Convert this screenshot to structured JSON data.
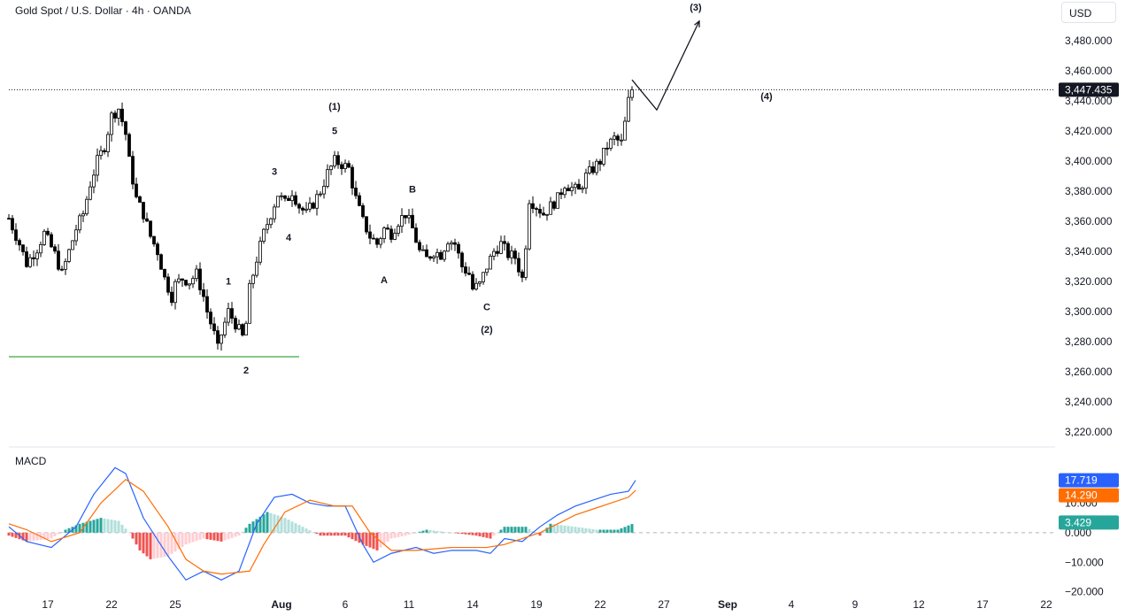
{
  "header": {
    "symbol_title": "Gold Spot / U.S. Dollar · 4h · OANDA",
    "currency": "USD"
  },
  "colors": {
    "up": "#26a69a",
    "down": "#ef5350",
    "candle": "#000000",
    "macd_line": "#2962ff",
    "signal_line": "#ff6d00",
    "hist_up_strong": "#26a69a",
    "hist_up_weak": "#b2dfdb",
    "hist_down_strong": "#ef5350",
    "hist_down_weak": "#ffcdd2",
    "support_line": "#4caf50"
  },
  "chart_data": [
    {
      "type": "candlestick",
      "title": "Gold Spot / U.S. Dollar · 4h · OANDA",
      "x_tick_labels": [
        "17",
        "22",
        "25",
        "Aug",
        "6",
        "11",
        "14",
        "19",
        "22",
        "27",
        "Sep",
        "4",
        "9",
        "12",
        "17",
        "22"
      ],
      "y_tick_labels": [
        "3,480.000",
        "3,460.000",
        "3,440.000",
        "3,420.000",
        "3,400.000",
        "3,380.000",
        "3,360.000",
        "3,340.000",
        "3,320.000",
        "3,300.000",
        "3,280.000",
        "3,260.000",
        "3,240.000",
        "3,220.000"
      ],
      "ylim": [
        3213,
        3500
      ],
      "last_price": 3447.435,
      "last_price_label": "3,447.435",
      "support_level": 3270,
      "close_path": [
        {
          "x": 0,
          "y": 3362
        },
        {
          "x": 3,
          "y": 3345
        },
        {
          "x": 5,
          "y": 3332
        },
        {
          "x": 8,
          "y": 3342
        },
        {
          "x": 10,
          "y": 3352
        },
        {
          "x": 13,
          "y": 3338
        },
        {
          "x": 15,
          "y": 3325
        },
        {
          "x": 17,
          "y": 3340
        },
        {
          "x": 19,
          "y": 3355
        },
        {
          "x": 21,
          "y": 3365
        },
        {
          "x": 23,
          "y": 3385
        },
        {
          "x": 25,
          "y": 3400
        },
        {
          "x": 27,
          "y": 3410
        },
        {
          "x": 29,
          "y": 3430
        },
        {
          "x": 31,
          "y": 3435
        },
        {
          "x": 33,
          "y": 3418
        },
        {
          "x": 34,
          "y": 3400
        },
        {
          "x": 36,
          "y": 3375
        },
        {
          "x": 38,
          "y": 3365
        },
        {
          "x": 40,
          "y": 3350
        },
        {
          "x": 42,
          "y": 3340
        },
        {
          "x": 44,
          "y": 3322
        },
        {
          "x": 46,
          "y": 3310
        },
        {
          "x": 47,
          "y": 3318
        },
        {
          "x": 49,
          "y": 3322
        },
        {
          "x": 51,
          "y": 3320
        },
        {
          "x": 53,
          "y": 3325
        },
        {
          "x": 55,
          "y": 3310
        },
        {
          "x": 56,
          "y": 3300
        },
        {
          "x": 58,
          "y": 3285
        },
        {
          "x": 59,
          "y": 3275
        },
        {
          "x": 60,
          "y": 3285
        },
        {
          "x": 62,
          "y": 3300
        },
        {
          "x": 64,
          "y": 3292
        },
        {
          "x": 66,
          "y": 3283
        },
        {
          "x": 67,
          "y": 3292
        },
        {
          "x": 68,
          "y": 3315
        },
        {
          "x": 70,
          "y": 3335
        },
        {
          "x": 72,
          "y": 3352
        },
        {
          "x": 74,
          "y": 3365
        },
        {
          "x": 76,
          "y": 3378
        },
        {
          "x": 78,
          "y": 3372
        },
        {
          "x": 80,
          "y": 3380
        },
        {
          "x": 82,
          "y": 3370
        },
        {
          "x": 84,
          "y": 3365
        },
        {
          "x": 86,
          "y": 3372
        },
        {
          "x": 88,
          "y": 3380
        },
        {
          "x": 90,
          "y": 3392
        },
        {
          "x": 92,
          "y": 3400
        },
        {
          "x": 94,
          "y": 3398
        },
        {
          "x": 96,
          "y": 3395
        },
        {
          "x": 98,
          "y": 3375
        },
        {
          "x": 100,
          "y": 3360
        },
        {
          "x": 102,
          "y": 3350
        },
        {
          "x": 104,
          "y": 3345
        },
        {
          "x": 106,
          "y": 3355
        },
        {
          "x": 108,
          "y": 3352
        },
        {
          "x": 110,
          "y": 3360
        },
        {
          "x": 112,
          "y": 3365
        },
        {
          "x": 114,
          "y": 3355
        },
        {
          "x": 116,
          "y": 3340
        },
        {
          "x": 118,
          "y": 3335
        },
        {
          "x": 120,
          "y": 3340
        },
        {
          "x": 122,
          "y": 3338
        },
        {
          "x": 124,
          "y": 3348
        },
        {
          "x": 126,
          "y": 3345
        },
        {
          "x": 128,
          "y": 3330
        },
        {
          "x": 130,
          "y": 3325
        },
        {
          "x": 131,
          "y": 3315
        },
        {
          "x": 133,
          "y": 3318
        },
        {
          "x": 135,
          "y": 3330
        },
        {
          "x": 137,
          "y": 3340
        },
        {
          "x": 139,
          "y": 3345
        },
        {
          "x": 141,
          "y": 3338
        },
        {
          "x": 143,
          "y": 3336
        },
        {
          "x": 145,
          "y": 3322
        },
        {
          "x": 146,
          "y": 3345
        },
        {
          "x": 147,
          "y": 3375
        },
        {
          "x": 149,
          "y": 3370
        },
        {
          "x": 151,
          "y": 3365
        },
        {
          "x": 153,
          "y": 3370
        },
        {
          "x": 155,
          "y": 3375
        },
        {
          "x": 157,
          "y": 3385
        },
        {
          "x": 159,
          "y": 3382
        },
        {
          "x": 161,
          "y": 3380
        },
        {
          "x": 163,
          "y": 3390
        },
        {
          "x": 165,
          "y": 3395
        },
        {
          "x": 167,
          "y": 3400
        },
        {
          "x": 169,
          "y": 3410
        },
        {
          "x": 171,
          "y": 3415
        },
        {
          "x": 173,
          "y": 3412
        },
        {
          "x": 174,
          "y": 3425
        },
        {
          "x": 175,
          "y": 3440
        },
        {
          "x": 176,
          "y": 3447
        }
      ],
      "projection": [
        {
          "x": 176,
          "y": 3454
        },
        {
          "x": 183,
          "y": 3434
        },
        {
          "x": 195,
          "y": 3493
        }
      ],
      "wave_labels": [
        {
          "text": "1",
          "x": 62,
          "y": 3318
        },
        {
          "text": "2",
          "x": 67,
          "y": 3259
        },
        {
          "text": "3",
          "x": 75,
          "y": 3391
        },
        {
          "text": "4",
          "x": 79,
          "y": 3347
        },
        {
          "text": "(1)",
          "x": 92,
          "y": 3434
        },
        {
          "text": "5",
          "x": 92,
          "y": 3418
        },
        {
          "text": "A",
          "x": 106,
          "y": 3319
        },
        {
          "text": "B",
          "x": 114,
          "y": 3379
        },
        {
          "text": "C",
          "x": 135,
          "y": 3301
        },
        {
          "text": "(2)",
          "x": 135,
          "y": 3286
        },
        {
          "text": "(4)",
          "x": 214,
          "y": 3441
        },
        {
          "text": "(3)",
          "x": 194,
          "y": 3500
        }
      ]
    },
    {
      "type": "line",
      "title": "MACD",
      "y_tick_labels": [
        "10.000",
        "0.000",
        "−10.000",
        "−20.000"
      ],
      "ylim": [
        -21,
        26
      ],
      "macd_value": "17.719",
      "signal_value": "14.290",
      "histogram_value": "3.429",
      "series": [
        {
          "key": "macd",
          "points": [
            {
              "x": 0,
              "y": 2
            },
            {
              "x": 5,
              "y": -3
            },
            {
              "x": 12,
              "y": -5
            },
            {
              "x": 19,
              "y": 2
            },
            {
              "x": 24,
              "y": 13
            },
            {
              "x": 30,
              "y": 22
            },
            {
              "x": 33,
              "y": 20
            },
            {
              "x": 38,
              "y": 5
            },
            {
              "x": 45,
              "y": -8
            },
            {
              "x": 50,
              "y": -16
            },
            {
              "x": 55,
              "y": -13
            },
            {
              "x": 60,
              "y": -16
            },
            {
              "x": 65,
              "y": -13
            },
            {
              "x": 70,
              "y": 3
            },
            {
              "x": 75,
              "y": 12
            },
            {
              "x": 80,
              "y": 13
            },
            {
              "x": 85,
              "y": 10
            },
            {
              "x": 90,
              "y": 9
            },
            {
              "x": 95,
              "y": 9
            },
            {
              "x": 100,
              "y": -4
            },
            {
              "x": 103,
              "y": -10
            },
            {
              "x": 108,
              "y": -7
            },
            {
              "x": 115,
              "y": -5
            },
            {
              "x": 120,
              "y": -7
            },
            {
              "x": 125,
              "y": -6
            },
            {
              "x": 132,
              "y": -6
            },
            {
              "x": 136,
              "y": -7
            },
            {
              "x": 140,
              "y": -2
            },
            {
              "x": 145,
              "y": -3
            },
            {
              "x": 150,
              "y": 2
            },
            {
              "x": 155,
              "y": 6
            },
            {
              "x": 160,
              "y": 9
            },
            {
              "x": 165,
              "y": 11
            },
            {
              "x": 170,
              "y": 13
            },
            {
              "x": 175,
              "y": 14
            },
            {
              "x": 177,
              "y": 17.7
            }
          ]
        },
        {
          "key": "signal",
          "points": [
            {
              "x": 0,
              "y": 3
            },
            {
              "x": 5,
              "y": 1
            },
            {
              "x": 12,
              "y": -3
            },
            {
              "x": 20,
              "y": 0
            },
            {
              "x": 26,
              "y": 10
            },
            {
              "x": 33,
              "y": 18
            },
            {
              "x": 38,
              "y": 14
            },
            {
              "x": 45,
              "y": 2
            },
            {
              "x": 50,
              "y": -9
            },
            {
              "x": 55,
              "y": -13
            },
            {
              "x": 60,
              "y": -14
            },
            {
              "x": 68,
              "y": -13
            },
            {
              "x": 72,
              "y": -4
            },
            {
              "x": 78,
              "y": 7
            },
            {
              "x": 85,
              "y": 11
            },
            {
              "x": 92,
              "y": 9
            },
            {
              "x": 97,
              "y": 9
            },
            {
              "x": 102,
              "y": 0
            },
            {
              "x": 108,
              "y": -6
            },
            {
              "x": 115,
              "y": -6
            },
            {
              "x": 125,
              "y": -5
            },
            {
              "x": 135,
              "y": -5
            },
            {
              "x": 140,
              "y": -4
            },
            {
              "x": 145,
              "y": -2
            },
            {
              "x": 150,
              "y": 0
            },
            {
              "x": 155,
              "y": 3
            },
            {
              "x": 160,
              "y": 6
            },
            {
              "x": 165,
              "y": 8
            },
            {
              "x": 170,
              "y": 10
            },
            {
              "x": 175,
              "y": 12
            },
            {
              "x": 177,
              "y": 14.3
            }
          ]
        }
      ],
      "histogram_path": [
        {
          "x": 0,
          "y": -1
        },
        {
          "x": 5,
          "y": -3
        },
        {
          "x": 12,
          "y": -2
        },
        {
          "x": 16,
          "y": 1
        },
        {
          "x": 20,
          "y": 3
        },
        {
          "x": 26,
          "y": 5
        },
        {
          "x": 31,
          "y": 4
        },
        {
          "x": 34,
          "y": 0
        },
        {
          "x": 37,
          "y": -6
        },
        {
          "x": 40,
          "y": -9
        },
        {
          "x": 45,
          "y": -8
        },
        {
          "x": 50,
          "y": -4
        },
        {
          "x": 55,
          "y": -2
        },
        {
          "x": 60,
          "y": -3
        },
        {
          "x": 65,
          "y": -1
        },
        {
          "x": 68,
          "y": 3
        },
        {
          "x": 73,
          "y": 7
        },
        {
          "x": 78,
          "y": 5
        },
        {
          "x": 83,
          "y": 2
        },
        {
          "x": 88,
          "y": -1
        },
        {
          "x": 95,
          "y": -1
        },
        {
          "x": 100,
          "y": -4
        },
        {
          "x": 104,
          "y": -6
        },
        {
          "x": 108,
          "y": -2
        },
        {
          "x": 112,
          "y": -1
        },
        {
          "x": 118,
          "y": 1
        },
        {
          "x": 125,
          "y": 0
        },
        {
          "x": 132,
          "y": -1
        },
        {
          "x": 136,
          "y": -2
        },
        {
          "x": 140,
          "y": 2
        },
        {
          "x": 146,
          "y": 2
        },
        {
          "x": 150,
          "y": -1
        },
        {
          "x": 153,
          "y": 3
        },
        {
          "x": 160,
          "y": 2
        },
        {
          "x": 166,
          "y": 1
        },
        {
          "x": 172,
          "y": 1
        },
        {
          "x": 177,
          "y": 3.4
        }
      ]
    }
  ]
}
